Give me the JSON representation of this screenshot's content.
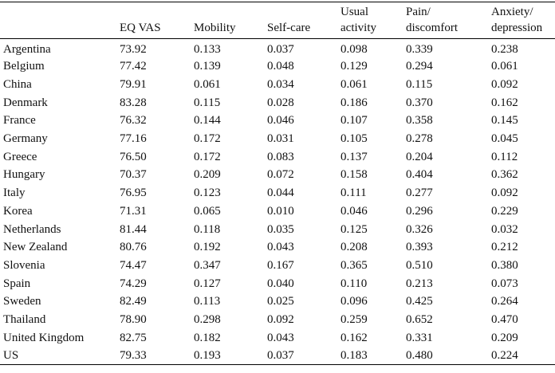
{
  "table": {
    "header": [
      [
        "EQ VAS"
      ],
      [
        "Mobility"
      ],
      [
        "Self-care"
      ],
      [
        "Usual",
        "activity"
      ],
      [
        "Pain/",
        "discomfort"
      ],
      [
        "Anxiety/",
        "depression"
      ]
    ],
    "rows": [
      [
        "Argentina",
        "73.92",
        "0.133",
        "0.037",
        "0.098",
        "0.339",
        "0.238"
      ],
      [
        "Belgium",
        "77.42",
        "0.139",
        "0.048",
        "0.129",
        "0.294",
        "0.061"
      ],
      [
        "China",
        "79.91",
        "0.061",
        "0.034",
        "0.061",
        "0.115",
        "0.092"
      ],
      [
        "Denmark",
        "83.28",
        "0.115",
        "0.028",
        "0.186",
        "0.370",
        "0.162"
      ],
      [
        "France",
        "76.32",
        "0.144",
        "0.046",
        "0.107",
        "0.358",
        "0.145"
      ],
      [
        "Germany",
        "77.16",
        "0.172",
        "0.031",
        "0.105",
        "0.278",
        "0.045"
      ],
      [
        "Greece",
        "76.50",
        "0.172",
        "0.083",
        "0.137",
        "0.204",
        "0.112"
      ],
      [
        "Hungary",
        "70.37",
        "0.209",
        "0.072",
        "0.158",
        "0.404",
        "0.362"
      ],
      [
        "Italy",
        "76.95",
        "0.123",
        "0.044",
        "0.111",
        "0.277",
        "0.092"
      ],
      [
        "Korea",
        "71.31",
        "0.065",
        "0.010",
        "0.046",
        "0.296",
        "0.229"
      ],
      [
        "Netherlands",
        "81.44",
        "0.118",
        "0.035",
        "0.125",
        "0.326",
        "0.032"
      ],
      [
        "New Zealand",
        "80.76",
        "0.192",
        "0.043",
        "0.208",
        "0.393",
        "0.212"
      ],
      [
        "Slovenia",
        "74.47",
        "0.347",
        "0.167",
        "0.365",
        "0.510",
        "0.380"
      ],
      [
        "Spain",
        "74.29",
        "0.127",
        "0.040",
        "0.110",
        "0.213",
        "0.073"
      ],
      [
        "Sweden",
        "82.49",
        "0.113",
        "0.025",
        "0.096",
        "0.425",
        "0.264"
      ],
      [
        "Thailand",
        "78.90",
        "0.298",
        "0.092",
        "0.259",
        "0.652",
        "0.470"
      ],
      [
        "United Kingdom",
        "82.75",
        "0.182",
        "0.043",
        "0.162",
        "0.331",
        "0.209"
      ],
      [
        "US",
        "79.33",
        "0.193",
        "0.037",
        "0.183",
        "0.480",
        "0.224"
      ]
    ]
  }
}
